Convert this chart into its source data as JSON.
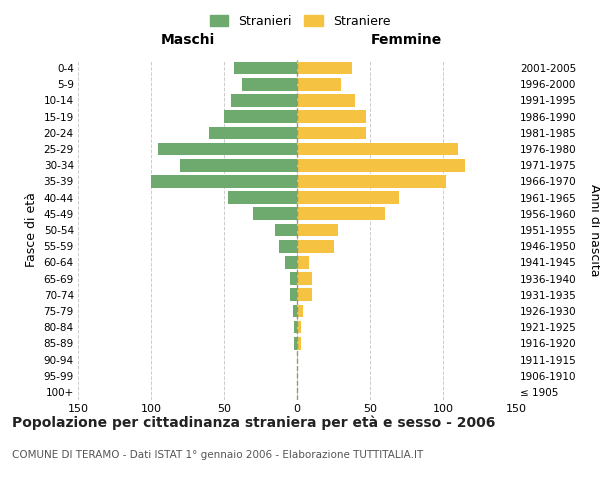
{
  "age_groups": [
    "100+",
    "95-99",
    "90-94",
    "85-89",
    "80-84",
    "75-79",
    "70-74",
    "65-69",
    "60-64",
    "55-59",
    "50-54",
    "45-49",
    "40-44",
    "35-39",
    "30-34",
    "25-29",
    "20-24",
    "15-19",
    "10-14",
    "5-9",
    "0-4"
  ],
  "birth_years": [
    "≤ 1905",
    "1906-1910",
    "1911-1915",
    "1916-1920",
    "1921-1925",
    "1926-1930",
    "1931-1935",
    "1936-1940",
    "1941-1945",
    "1946-1950",
    "1951-1955",
    "1956-1960",
    "1961-1965",
    "1966-1970",
    "1971-1975",
    "1976-1980",
    "1981-1985",
    "1986-1990",
    "1991-1995",
    "1996-2000",
    "2001-2005"
  ],
  "maschi": [
    0,
    0,
    0,
    2,
    2,
    3,
    5,
    5,
    8,
    12,
    15,
    30,
    47,
    100,
    80,
    95,
    60,
    50,
    45,
    38,
    43
  ],
  "femmine": [
    0,
    0,
    0,
    3,
    3,
    4,
    10,
    10,
    8,
    25,
    28,
    60,
    70,
    102,
    115,
    110,
    47,
    47,
    40,
    30,
    38
  ],
  "color_maschi": "#6ea96e",
  "color_femmine": "#f5c242",
  "title": "Popolazione per cittadinanza straniera per età e sesso - 2006",
  "subtitle": "COMUNE DI TERAMO - Dati ISTAT 1° gennaio 2006 - Elaborazione TUTTITALIA.IT",
  "label_left": "Maschi",
  "label_right": "Femmine",
  "ylabel_left": "Fasce di età",
  "ylabel_right": "Anni di nascita",
  "legend_maschi": "Stranieri",
  "legend_femmine": "Straniere",
  "xlim": 150,
  "background_color": "#ffffff",
  "grid_color": "#cccccc"
}
